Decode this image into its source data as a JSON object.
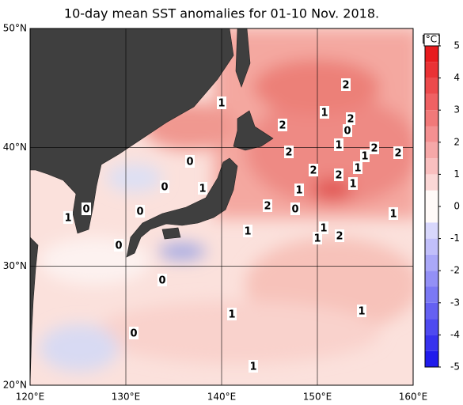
{
  "title": "10-day mean SST anomalies for 01-10 Nov. 2018.",
  "map": {
    "xlim": [
      120,
      160
    ],
    "ylim": [
      20,
      50
    ],
    "xticks": [
      {
        "value": 120,
        "label": "120°E"
      },
      {
        "value": 130,
        "label": "130°E"
      },
      {
        "value": 140,
        "label": "140°E"
      },
      {
        "value": 150,
        "label": "150°E"
      },
      {
        "value": 160,
        "label": "160°E"
      }
    ],
    "yticks": [
      {
        "value": 20,
        "label": "20°N"
      },
      {
        "value": 30,
        "label": "30°N"
      },
      {
        "value": 40,
        "label": "40°N"
      },
      {
        "value": 50,
        "label": "50°N"
      }
    ],
    "contour_labels": [
      2,
      1,
      1,
      2,
      2,
      0,
      1,
      2,
      2,
      2,
      1,
      0,
      2,
      2,
      1,
      1,
      0,
      1,
      1,
      2,
      0,
      0,
      0,
      1,
      1,
      1,
      1,
      1,
      2,
      0,
      0,
      1,
      1,
      0,
      1
    ]
  },
  "colorbar": {
    "unit": "[°C]",
    "lim": [
      -5,
      5
    ],
    "ticks": [
      5,
      4,
      3,
      2,
      1,
      0,
      -1,
      -2,
      -3,
      -4,
      -5
    ]
  }
}
